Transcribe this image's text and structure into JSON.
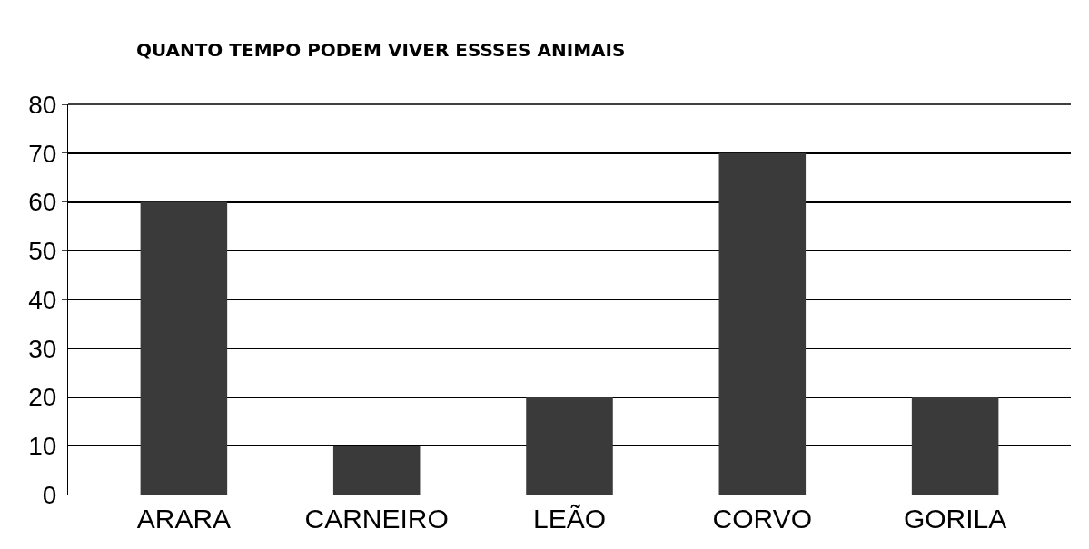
{
  "chart_data": {
    "type": "bar",
    "title": "QUANTO TEMPO PODEM VIVER ESSSES ANIMAIS",
    "categories": [
      "ARARA",
      "CARNEIRO",
      "LEÃO",
      "CORVO",
      "GORILA"
    ],
    "values": [
      60,
      10,
      20,
      70,
      20
    ],
    "color": "#3a3a3a",
    "ylim": [
      0,
      80
    ],
    "yticks": [
      0,
      10,
      20,
      30,
      40,
      50,
      60,
      70,
      80
    ],
    "grid": "y"
  }
}
